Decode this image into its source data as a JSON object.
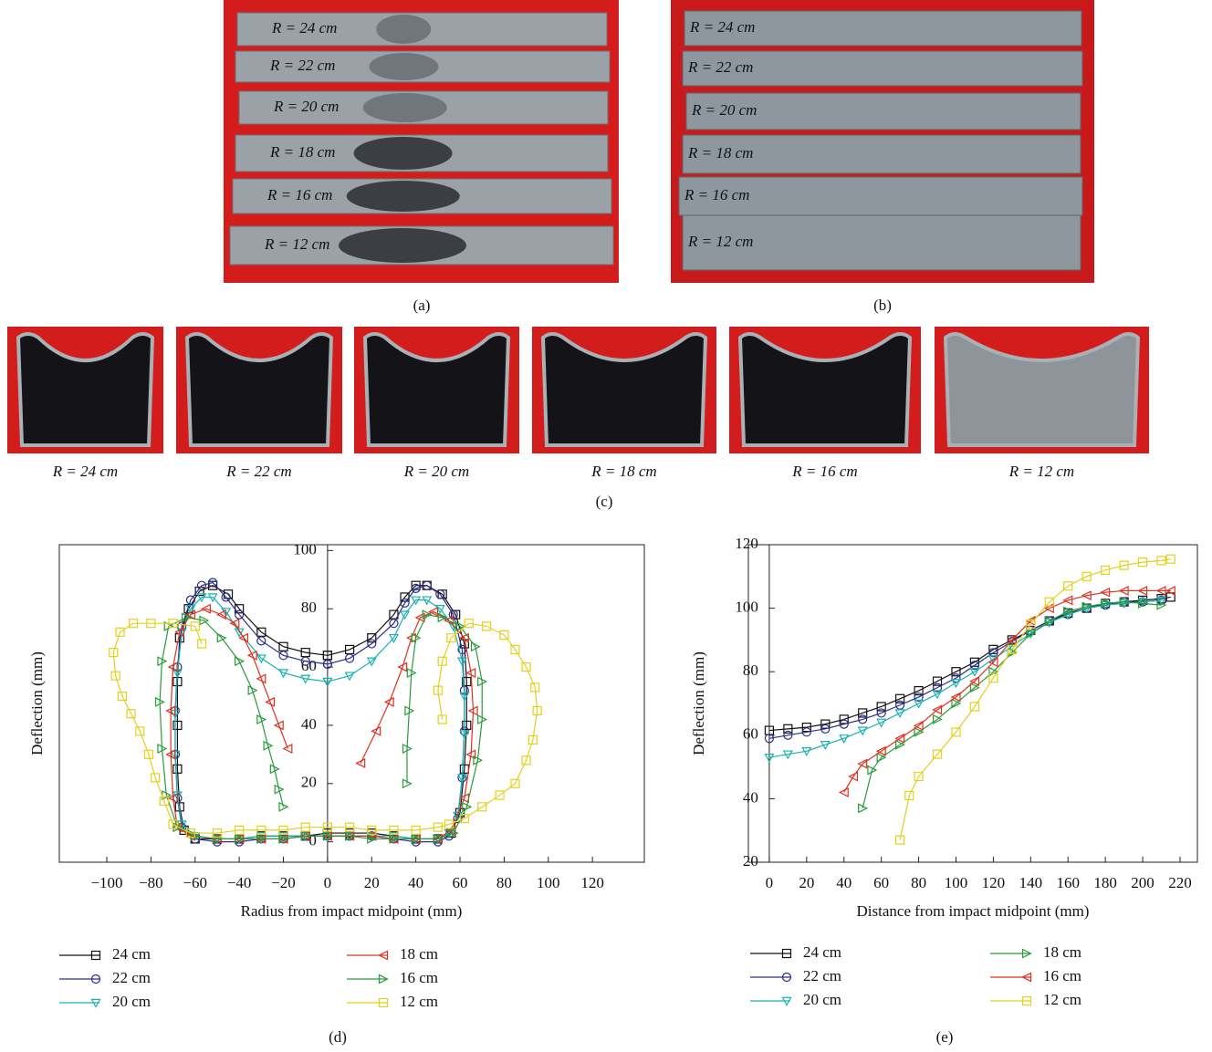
{
  "figure": {
    "panel_a": {
      "caption": "(a)",
      "labels": [
        "R = 24 cm",
        "R = 22 cm",
        "R = 20 cm",
        "R = 18 cm",
        "R = 16 cm",
        "R = 12 cm"
      ]
    },
    "panel_b": {
      "caption": "(b)",
      "labels": [
        "R = 24 cm",
        "R = 22 cm",
        "R = 20 cm",
        "R = 18 cm",
        "R = 16 cm",
        "R = 12 cm"
      ]
    },
    "panel_c": {
      "caption": "(c)",
      "labels": [
        "R = 24 cm",
        "R = 22 cm",
        "R = 20 cm",
        "R = 18 cm",
        "R = 16 cm",
        "R = 12 cm"
      ]
    }
  },
  "chart_data": [
    {
      "type": "line",
      "caption": "(d)",
      "x_label": "Radius from impact midpoint (mm)",
      "y_label": "Deflection (mm)",
      "xlim": [
        -121.5,
        143.5
      ],
      "ylim": [
        -7,
        102
      ],
      "xticks": [
        {
          "value": -100,
          "label": "−100"
        },
        {
          "value": -80,
          "label": "−80"
        },
        {
          "value": -60,
          "label": "−60"
        },
        {
          "value": -40,
          "label": "−40"
        },
        {
          "value": -20,
          "label": "−20"
        },
        0,
        20,
        40,
        60,
        80,
        100,
        120
      ],
      "yticks": [
        0,
        20,
        40,
        60,
        80,
        100
      ],
      "series": [
        {
          "name": "24 cm",
          "color": "#111111",
          "marker": "square",
          "x": [
            0,
            -10,
            -20,
            -30,
            -40,
            -45,
            -52,
            -58,
            -63,
            -67,
            -68,
            -68,
            -68,
            -67,
            -65,
            -60,
            -50,
            -40,
            -30,
            -20,
            -10,
            0,
            10,
            20,
            30,
            40,
            50,
            56,
            60,
            62,
            63,
            63,
            62,
            58,
            52,
            45,
            40,
            35,
            30,
            20,
            10,
            0
          ],
          "values": [
            64,
            65,
            67,
            72,
            80,
            85,
            88,
            86,
            80,
            70,
            55,
            40,
            25,
            12,
            4,
            1,
            1,
            1,
            2,
            2,
            2,
            3,
            3,
            3,
            2,
            1,
            1,
            3,
            10,
            25,
            40,
            55,
            68,
            78,
            85,
            88,
            88,
            84,
            78,
            70,
            66,
            64
          ]
        },
        {
          "name": "22 cm",
          "color": "#2b2b8e",
          "marker": "circle",
          "x": [
            0,
            -10,
            -20,
            -30,
            -40,
            -46,
            -52,
            -57,
            -62,
            -66,
            -68,
            -69,
            -69,
            -68,
            -66,
            -60,
            -50,
            -40,
            -30,
            -20,
            -10,
            0,
            10,
            20,
            30,
            40,
            50,
            55,
            59,
            61,
            62,
            62,
            61,
            57,
            51,
            45,
            40,
            35,
            30,
            20,
            10,
            0
          ],
          "values": [
            61,
            62,
            64,
            69,
            78,
            84,
            89,
            88,
            83,
            74,
            60,
            45,
            30,
            15,
            5,
            1,
            0,
            0,
            1,
            1,
            2,
            2,
            2,
            2,
            1,
            0,
            0,
            2,
            8,
            22,
            38,
            52,
            66,
            78,
            85,
            88,
            87,
            82,
            75,
            68,
            63,
            61
          ]
        },
        {
          "name": "20 cm",
          "color": "#19b2b2",
          "marker": "triangle-down",
          "x": [
            0,
            -10,
            -20,
            -30,
            -40,
            -46,
            -52,
            -57,
            -62,
            -66,
            -68,
            -69,
            -69,
            -68,
            -66,
            -60,
            -50,
            -40,
            -30,
            -20,
            -10,
            0,
            10,
            20,
            30,
            40,
            50,
            55,
            59,
            61,
            62,
            62,
            61,
            57,
            51,
            45,
            40,
            35,
            30,
            20,
            10,
            0
          ],
          "values": [
            55,
            56,
            58,
            63,
            72,
            79,
            84,
            84,
            80,
            72,
            58,
            44,
            30,
            16,
            6,
            2,
            1,
            1,
            2,
            2,
            2,
            2,
            2,
            2,
            2,
            1,
            1,
            3,
            9,
            22,
            37,
            50,
            62,
            74,
            80,
            83,
            83,
            78,
            70,
            62,
            57,
            55
          ]
        },
        {
          "name": "18 cm",
          "color": "#e0301e",
          "marker": "triangle-left",
          "x": [
            -18,
            -22,
            -26,
            -30,
            -34,
            -38,
            -42,
            -48,
            -55,
            -62,
            -67,
            -70,
            -71,
            -71,
            -70,
            -68,
            -62,
            -50,
            -40,
            -30,
            -20,
            -10,
            0,
            10,
            20,
            30,
            40,
            50,
            56,
            62,
            65,
            66,
            65,
            62,
            55,
            48,
            42,
            38,
            34,
            28,
            22,
            15
          ],
          "values": [
            32,
            40,
            48,
            56,
            64,
            70,
            75,
            78,
            80,
            78,
            72,
            60,
            45,
            30,
            15,
            5,
            2,
            1,
            1,
            1,
            1,
            2,
            2,
            2,
            2,
            1,
            1,
            1,
            4,
            15,
            30,
            45,
            58,
            70,
            76,
            79,
            77,
            70,
            60,
            48,
            38,
            27
          ]
        },
        {
          "name": "16 cm",
          "color": "#2a9a3a",
          "marker": "triangle-right",
          "x": [
            -20,
            -22,
            -24,
            -27,
            -30,
            -34,
            -40,
            -48,
            -56,
            -64,
            -72,
            -75,
            -76,
            -75,
            -73,
            -68,
            -60,
            -50,
            -40,
            -30,
            -20,
            -10,
            0,
            10,
            20,
            30,
            40,
            50,
            57,
            63,
            68,
            70,
            70,
            67,
            60,
            52,
            45,
            40,
            38,
            37,
            36,
            36
          ],
          "values": [
            12,
            18,
            25,
            33,
            42,
            52,
            62,
            70,
            76,
            77,
            74,
            62,
            48,
            32,
            16,
            5,
            2,
            1,
            1,
            1,
            1,
            2,
            2,
            2,
            1,
            1,
            1,
            1,
            3,
            12,
            28,
            42,
            55,
            67,
            74,
            77,
            78,
            70,
            58,
            45,
            32,
            20
          ]
        },
        {
          "name": "12 cm",
          "color": "#e6cf1c",
          "marker": "square",
          "x": [
            -57,
            -60,
            -70,
            -80,
            -88,
            -94,
            -97,
            -96,
            -93,
            -89,
            -85,
            -81,
            -78,
            -74,
            -70,
            -62,
            -50,
            -40,
            -30,
            -20,
            -10,
            0,
            10,
            20,
            30,
            40,
            50,
            55,
            62,
            70,
            78,
            85,
            90,
            93,
            95,
            94,
            90,
            85,
            80,
            72,
            64,
            56,
            52,
            50,
            52
          ],
          "values": [
            68,
            74,
            75,
            75,
            75,
            72,
            65,
            57,
            50,
            44,
            38,
            30,
            22,
            14,
            6,
            3,
            3,
            4,
            4,
            4,
            5,
            5,
            5,
            4,
            4,
            4,
            5,
            6,
            8,
            12,
            16,
            20,
            28,
            35,
            45,
            53,
            60,
            66,
            71,
            74,
            75,
            70,
            62,
            52,
            42
          ]
        }
      ]
    },
    {
      "type": "line",
      "caption": "(e)",
      "x_label": "Distance from impact midpoint (mm)",
      "y_label": "Deflection (mm)",
      "xlim": [
        -11.2,
        229.3
      ],
      "ylim": [
        20,
        120
      ],
      "xticks": [
        0,
        20,
        40,
        60,
        80,
        100,
        120,
        140,
        160,
        180,
        200,
        220
      ],
      "yticks": [
        20,
        40,
        60,
        80,
        100,
        120
      ],
      "series": [
        {
          "name": "24 cm",
          "color": "#111111",
          "marker": "square",
          "x": [
            0,
            10,
            20,
            30,
            40,
            50,
            60,
            70,
            80,
            90,
            100,
            110,
            120,
            130,
            140,
            150,
            160,
            170,
            180,
            190,
            200,
            210,
            215
          ],
          "values": [
            61.5,
            62,
            62.5,
            63.5,
            65,
            67,
            69,
            71.5,
            74,
            77,
            80,
            83,
            87,
            90,
            93,
            96,
            98.5,
            100,
            101.5,
            102,
            102.5,
            103,
            103.5
          ]
        },
        {
          "name": "22 cm",
          "color": "#2b2b8e",
          "marker": "circle",
          "x": [
            0,
            10,
            20,
            30,
            40,
            50,
            60,
            70,
            80,
            90,
            100,
            110,
            120,
            130,
            140,
            150,
            160,
            170,
            180,
            190,
            200,
            210
          ],
          "values": [
            59,
            60,
            61,
            62,
            63.5,
            65,
            67,
            69.5,
            72,
            75,
            78,
            82,
            86,
            89.5,
            93,
            96,
            98,
            100,
            101,
            102,
            102,
            102.5
          ]
        },
        {
          "name": "20 cm",
          "color": "#19b2b2",
          "marker": "triangle-down",
          "x": [
            0,
            10,
            20,
            30,
            40,
            50,
            60,
            70,
            80,
            90,
            100,
            110,
            120,
            130,
            140,
            150,
            160,
            170,
            180,
            190,
            200,
            210
          ],
          "values": [
            53,
            54,
            55,
            57,
            59,
            61.5,
            64,
            67,
            70,
            73,
            76.5,
            80,
            84,
            88,
            92,
            95.5,
            98,
            100,
            101,
            101.5,
            102,
            102.5
          ]
        },
        {
          "name": "18 cm",
          "color": "#2a9a3a",
          "marker": "triangle-right",
          "x": [
            50,
            55,
            60,
            70,
            80,
            90,
            100,
            110,
            120,
            130,
            140,
            150,
            160,
            170,
            180,
            190,
            200,
            210
          ],
          "values": [
            37,
            49,
            53,
            57,
            61,
            65,
            70,
            75,
            80,
            86,
            92,
            96,
            99,
            100.5,
            101.5,
            102,
            101.5,
            101
          ]
        },
        {
          "name": "16 cm",
          "color": "#e0301e",
          "marker": "triangle-left",
          "x": [
            40,
            45,
            50,
            60,
            70,
            80,
            90,
            100,
            110,
            120,
            130,
            140,
            150,
            160,
            170,
            180,
            190,
            200,
            210,
            215
          ],
          "values": [
            42,
            47,
            51,
            55,
            59,
            63,
            68,
            72,
            77,
            83,
            90,
            96,
            100,
            102.5,
            104,
            105,
            105.5,
            105.5,
            105.5,
            105.5
          ]
        },
        {
          "name": "12 cm",
          "color": "#e6cf1c",
          "marker": "square",
          "x": [
            70,
            75,
            80,
            90,
            100,
            110,
            120,
            130,
            140,
            150,
            160,
            170,
            180,
            190,
            200,
            210,
            215
          ],
          "values": [
            27,
            41,
            47,
            54,
            61,
            69,
            78,
            87,
            95,
            102,
            107,
            110,
            112,
            113.5,
            114.5,
            115,
            115.5
          ]
        }
      ]
    }
  ]
}
